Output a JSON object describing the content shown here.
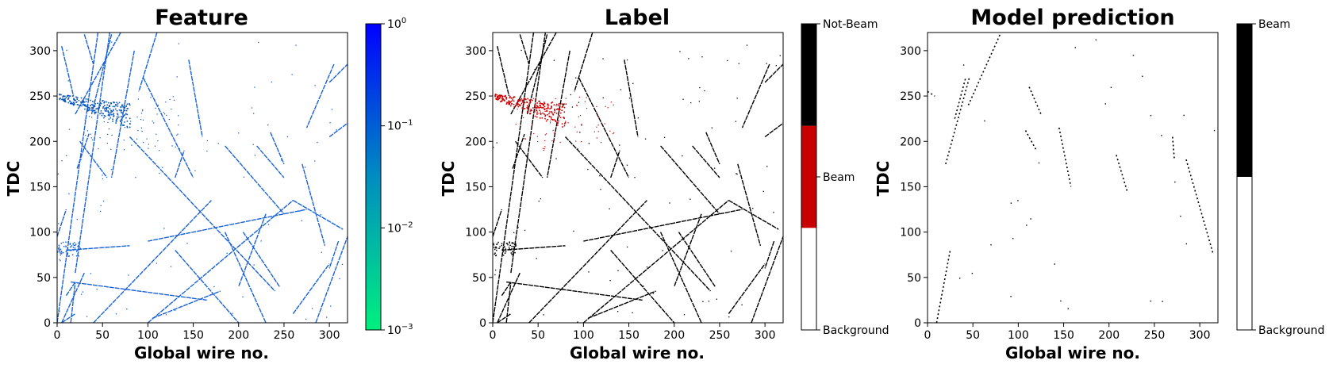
{
  "chart_data": [
    {
      "type": "heatmap",
      "title": "Feature",
      "xlabel": "Global wire no.",
      "ylabel": "TDC",
      "xlim": [
        0,
        320
      ],
      "ylim": [
        0,
        320
      ],
      "xticks": [
        0,
        50,
        100,
        150,
        200,
        250,
        300
      ],
      "yticks": [
        0,
        50,
        100,
        150,
        200,
        250,
        300
      ],
      "colorbar": {
        "scale": "log",
        "range": [
          0.001,
          1
        ],
        "ticks": [
          {
            "value": 1,
            "base": "10",
            "exp": "0"
          },
          {
            "value": 0.1,
            "base": "10",
            "exp": "−1"
          },
          {
            "value": 0.01,
            "base": "10",
            "exp": "−2"
          },
          {
            "value": 0.001,
            "base": "10",
            "exp": "−3"
          }
        ],
        "colors": [
          "#00f07f",
          "#0000ff"
        ]
      },
      "track_color": "#1a62d8",
      "beam_color": "#0a56b8"
    },
    {
      "type": "heatmap",
      "title": "Label",
      "xlabel": "Global wire no.",
      "ylabel": "TDC",
      "xlim": [
        0,
        320
      ],
      "ylim": [
        0,
        320
      ],
      "xticks": [
        0,
        50,
        100,
        150,
        200,
        250,
        300
      ],
      "yticks": [
        0,
        50,
        100,
        150,
        200,
        250,
        300
      ],
      "colorbar": {
        "scale": "categorical",
        "classes": [
          {
            "label": "Background",
            "color": "#ffffff"
          },
          {
            "label": "Beam",
            "color": "#c80000"
          },
          {
            "label": "Not-Beam",
            "color": "#000000"
          }
        ]
      },
      "track_color": "#000000",
      "beam_color": "#c80000"
    },
    {
      "type": "heatmap",
      "title": "Model prediction",
      "xlabel": "Global wire no.",
      "ylabel": "TDC",
      "xlim": [
        0,
        320
      ],
      "ylim": [
        0,
        320
      ],
      "xticks": [
        0,
        50,
        100,
        150,
        200,
        250,
        300
      ],
      "yticks": [
        0,
        50,
        100,
        150,
        200,
        250,
        300
      ],
      "colorbar": {
        "scale": "categorical",
        "classes": [
          {
            "label": "Background",
            "color": "#ffffff"
          },
          {
            "label": "Beam",
            "color": "#000000"
          }
        ]
      },
      "track_color": "#000000"
    }
  ],
  "tracks": [
    [
      [
        0,
        0
      ],
      [
        45,
        320
      ]
    ],
    [
      [
        20,
        55
      ],
      [
        58,
        320
      ]
    ],
    [
      [
        22,
        170
      ],
      [
        35,
        208
      ]
    ],
    [
      [
        20,
        230
      ],
      [
        70,
        320
      ]
    ],
    [
      [
        30,
        318
      ],
      [
        40,
        285
      ]
    ],
    [
      [
        5,
        305
      ],
      [
        18,
        250
      ]
    ],
    [
      [
        60,
        318
      ],
      [
        38,
        230
      ]
    ],
    [
      [
        85,
        300
      ],
      [
        60,
        160
      ]
    ],
    [
      [
        145,
        290
      ],
      [
        160,
        205
      ]
    ],
    [
      [
        110,
        320
      ],
      [
        90,
        255
      ]
    ],
    [
      [
        95,
        270
      ],
      [
        150,
        160
      ]
    ],
    [
      [
        185,
        195
      ],
      [
        250,
        120
      ]
    ],
    [
      [
        25,
        200
      ],
      [
        55,
        160
      ]
    ],
    [
      [
        80,
        205
      ],
      [
        240,
        35
      ]
    ],
    [
      [
        5,
        0
      ],
      [
        30,
        55
      ]
    ],
    [
      [
        10,
        80
      ],
      [
        80,
        85
      ]
    ],
    [
      [
        100,
        90
      ],
      [
        275,
        125
      ]
    ],
    [
      [
        0,
        95
      ],
      [
        10,
        125
      ]
    ],
    [
      [
        100,
        0
      ],
      [
        260,
        135
      ]
    ],
    [
      [
        260,
        135
      ],
      [
        315,
        103
      ]
    ],
    [
      [
        40,
        0
      ],
      [
        170,
        135
      ]
    ],
    [
      [
        15,
        45
      ],
      [
        165,
        25
      ]
    ],
    [
      [
        105,
        5
      ],
      [
        180,
        35
      ]
    ],
    [
      [
        130,
        80
      ],
      [
        200,
        0
      ]
    ],
    [
      [
        185,
        100
      ],
      [
        230,
        0
      ]
    ],
    [
      [
        230,
        120
      ],
      [
        200,
        40
      ]
    ],
    [
      [
        220,
        195
      ],
      [
        250,
        160
      ]
    ],
    [
      [
        245,
        40
      ],
      [
        205,
        100
      ]
    ],
    [
      [
        270,
        175
      ],
      [
        295,
        85
      ]
    ],
    [
      [
        235,
        210
      ],
      [
        250,
        175
      ]
    ],
    [
      [
        260,
        10
      ],
      [
        300,
        65
      ]
    ],
    [
      [
        285,
        0
      ],
      [
        320,
        95
      ]
    ],
    [
      [
        310,
        90
      ],
      [
        300,
        60
      ]
    ],
    [
      [
        305,
        285
      ],
      [
        275,
        215
      ]
    ],
    [
      [
        300,
        265
      ],
      [
        320,
        285
      ]
    ],
    [
      [
        300,
        205
      ],
      [
        320,
        220
      ]
    ],
    [
      [
        5,
        0
      ],
      [
        20,
        10
      ]
    ],
    [
      [
        130,
        160
      ],
      [
        140,
        190
      ]
    ],
    [
      [
        10,
        30
      ],
      [
        20,
        45
      ]
    ],
    [
      [
        15,
        0
      ],
      [
        20,
        45
      ]
    ]
  ],
  "pred_tracks": [
    [
      [
        20,
        175
      ],
      [
        46,
        270
      ]
    ],
    [
      [
        45,
        240
      ],
      [
        80,
        318
      ]
    ],
    [
      [
        30,
        225
      ],
      [
        42,
        270
      ]
    ],
    [
      [
        145,
        215
      ],
      [
        158,
        150
      ]
    ],
    [
      [
        108,
        212
      ],
      [
        120,
        190
      ]
    ],
    [
      [
        112,
        260
      ],
      [
        125,
        230
      ]
    ],
    [
      [
        208,
        185
      ],
      [
        220,
        145
      ]
    ],
    [
      [
        285,
        180
      ],
      [
        315,
        75
      ]
    ],
    [
      [
        270,
        205
      ],
      [
        272,
        180
      ]
    ],
    [
      [
        10,
        0
      ],
      [
        25,
        80
      ]
    ],
    [
      [
        0,
        255
      ],
      [
        8,
        250
      ]
    ]
  ]
}
